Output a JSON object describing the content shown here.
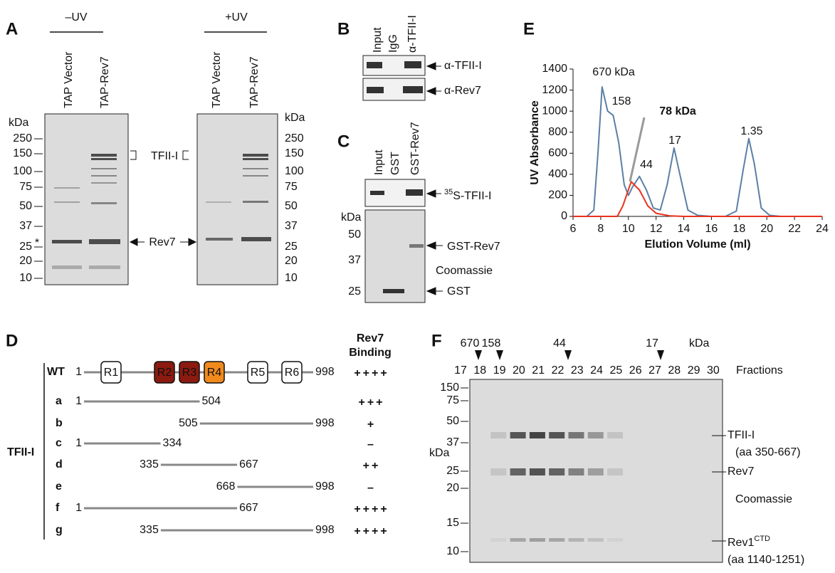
{
  "panels": {
    "A": {
      "letter": "A",
      "minus_uv": "–UV",
      "plus_uv": "+UV",
      "lanes": [
        "TAP Vector",
        "TAP-Rev7"
      ],
      "kda": "kDa",
      "markers": [
        "250",
        "150",
        "100",
        "75",
        "50",
        "37",
        "25",
        "20",
        "10"
      ],
      "star": "*",
      "tfii": "TFII-I",
      "rev7": "Rev7"
    },
    "B": {
      "letter": "B",
      "lanes": [
        "Input",
        "IgG",
        "α-TFII-I"
      ],
      "blots": [
        "α-TFII-I",
        "α-Rev7"
      ]
    },
    "C": {
      "letter": "C",
      "lanes": [
        "Input",
        "GST",
        "GST-Rev7"
      ],
      "top_sup": "35",
      "top_label": "S-TFII-I",
      "kda": "kDa",
      "markers": [
        "50",
        "37",
        "25"
      ],
      "labels": [
        "GST-Rev7",
        "Coomassie",
        "GST"
      ]
    },
    "D": {
      "letter": "D",
      "header": [
        "Rev7",
        "Binding"
      ],
      "protein": "TFII-I",
      "wt": {
        "name": "WT",
        "start": 1,
        "end": 998,
        "domains": [
          "R1",
          "R2",
          "R3",
          "R4",
          "R5",
          "R6"
        ],
        "binding": "++++"
      },
      "constructs": [
        {
          "name": "a",
          "start": 1,
          "end": 504,
          "binding": "+++"
        },
        {
          "name": "b",
          "start": 505,
          "end": 998,
          "binding": "+"
        },
        {
          "name": "c",
          "start": 1,
          "end": 334,
          "binding": "–"
        },
        {
          "name": "d",
          "start": 335,
          "end": 667,
          "binding": "++"
        },
        {
          "name": "e",
          "start": 668,
          "end": 998,
          "binding": "–"
        },
        {
          "name": "f",
          "start": 1,
          "end": 667,
          "binding": "++++"
        },
        {
          "name": "g",
          "start": 335,
          "end": 998,
          "binding": "++++"
        }
      ]
    },
    "F": {
      "letter": "F",
      "top_markers": [
        "670",
        "158",
        "44",
        "17"
      ],
      "top_kda": "kDa",
      "fractions": [
        "17",
        "18",
        "19",
        "20",
        "21",
        "22",
        "23",
        "24",
        "25",
        "26",
        "27",
        "28",
        "29",
        "30"
      ],
      "fractions_label": "Fractions",
      "kda": "kDa",
      "markers": [
        "150",
        "75",
        "50",
        "37",
        "25",
        "20",
        "15",
        "10"
      ],
      "labels": [
        "TFII-I",
        "(aa 350-667)",
        "Rev7",
        "Coomassie",
        "Rev1",
        "CTD",
        "(aa 1140-1251)"
      ]
    }
  },
  "chart_data": {
    "type": "line",
    "letter": "E",
    "x_label": "Elution Volume (ml)",
    "y_label": "UV Absorbance",
    "xlim": [
      6,
      24
    ],
    "xticks": [
      6,
      8,
      10,
      12,
      14,
      16,
      18,
      20,
      22,
      24
    ],
    "ylim": [
      0,
      1400
    ],
    "yticks": [
      0,
      200,
      400,
      600,
      800,
      1000,
      1200,
      1400
    ],
    "annotations": [
      "670 kDa",
      "158",
      "78 kDa",
      "44",
      "17",
      "1.35"
    ],
    "series": [
      {
        "color": "#5b7fa6",
        "x": [
          6,
          7,
          7.5,
          7.8,
          8.1,
          8.5,
          8.9,
          9.3,
          9.7,
          10.0,
          10.3,
          10.8,
          11.3,
          11.8,
          12.3,
          12.8,
          13.3,
          13.8,
          14.3,
          15,
          16,
          17,
          17.8,
          18.3,
          18.7,
          19.1,
          19.6,
          20.2,
          21,
          24
        ],
        "values": [
          0,
          0,
          60,
          600,
          1230,
          1000,
          960,
          700,
          300,
          200,
          280,
          380,
          250,
          80,
          60,
          300,
          650,
          350,
          60,
          10,
          0,
          0,
          50,
          450,
          740,
          500,
          80,
          10,
          0,
          0
        ]
      },
      {
        "color": "#e8321e",
        "x": [
          6,
          9.2,
          9.6,
          10.2,
          10.8,
          11.4,
          12,
          13,
          14,
          24
        ],
        "values": [
          0,
          0,
          100,
          330,
          250,
          100,
          30,
          5,
          0,
          0
        ]
      }
    ]
  }
}
